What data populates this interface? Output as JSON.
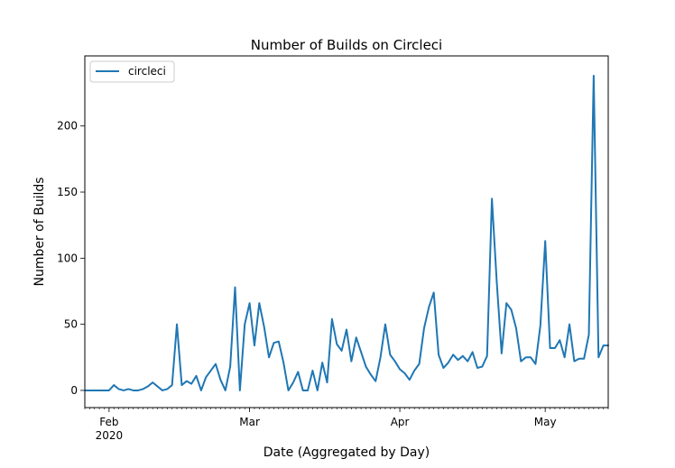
{
  "chart_data": {
    "type": "line",
    "title": "Number of Builds on Circleci",
    "xlabel": "Date (Aggregated by Day)",
    "ylabel": "Number of Builds",
    "x_start": "2020-01-27",
    "x_end": "2020-05-14",
    "x_ticks": [
      {
        "date": "2020-02-01",
        "label": "Feb",
        "sublabel": "2020"
      },
      {
        "date": "2020-03-01",
        "label": "Mar",
        "sublabel": ""
      },
      {
        "date": "2020-04-01",
        "label": "Apr",
        "sublabel": ""
      },
      {
        "date": "2020-05-01",
        "label": "May",
        "sublabel": ""
      }
    ],
    "ylim": [
      -13,
      253
    ],
    "y_ticks": [
      0,
      50,
      100,
      150,
      200
    ],
    "grid": false,
    "legend_position": "upper-left",
    "color": "#1f77b4",
    "series": [
      {
        "name": "circleci",
        "x": [
          "2020-01-27",
          "2020-01-28",
          "2020-01-29",
          "2020-01-30",
          "2020-01-31",
          "2020-02-01",
          "2020-02-02",
          "2020-02-03",
          "2020-02-04",
          "2020-02-05",
          "2020-02-06",
          "2020-02-07",
          "2020-02-08",
          "2020-02-09",
          "2020-02-10",
          "2020-02-11",
          "2020-02-12",
          "2020-02-13",
          "2020-02-14",
          "2020-02-15",
          "2020-02-16",
          "2020-02-17",
          "2020-02-18",
          "2020-02-19",
          "2020-02-20",
          "2020-02-21",
          "2020-02-22",
          "2020-02-23",
          "2020-02-24",
          "2020-02-25",
          "2020-02-26",
          "2020-02-27",
          "2020-02-28",
          "2020-02-29",
          "2020-03-01",
          "2020-03-02",
          "2020-03-03",
          "2020-03-04",
          "2020-03-05",
          "2020-03-06",
          "2020-03-07",
          "2020-03-08",
          "2020-03-09",
          "2020-03-10",
          "2020-03-11",
          "2020-03-12",
          "2020-03-13",
          "2020-03-14",
          "2020-03-15",
          "2020-03-16",
          "2020-03-17",
          "2020-03-18",
          "2020-03-19",
          "2020-03-20",
          "2020-03-21",
          "2020-03-22",
          "2020-03-23",
          "2020-03-24",
          "2020-03-25",
          "2020-03-26",
          "2020-03-27",
          "2020-03-28",
          "2020-03-29",
          "2020-03-30",
          "2020-03-31",
          "2020-04-01",
          "2020-04-02",
          "2020-04-03",
          "2020-04-04",
          "2020-04-05",
          "2020-04-06",
          "2020-04-07",
          "2020-04-08",
          "2020-04-09",
          "2020-04-10",
          "2020-04-11",
          "2020-04-12",
          "2020-04-13",
          "2020-04-14",
          "2020-04-15",
          "2020-04-16",
          "2020-04-17",
          "2020-04-18",
          "2020-04-19",
          "2020-04-20",
          "2020-04-21",
          "2020-04-22",
          "2020-04-23",
          "2020-04-24",
          "2020-04-25",
          "2020-04-26",
          "2020-04-27",
          "2020-04-28",
          "2020-04-29",
          "2020-04-30",
          "2020-05-01",
          "2020-05-02",
          "2020-05-03",
          "2020-05-04",
          "2020-05-05",
          "2020-05-06",
          "2020-05-07",
          "2020-05-08",
          "2020-05-09",
          "2020-05-10",
          "2020-05-11",
          "2020-05-12",
          "2020-05-13",
          "2020-05-14"
        ],
        "y": [
          0,
          0,
          0,
          0,
          0,
          0,
          4,
          1,
          0,
          1,
          0,
          0,
          1,
          3,
          6,
          3,
          0,
          1,
          4,
          50,
          4,
          7,
          5,
          11,
          0,
          10,
          15,
          20,
          8,
          0,
          18,
          78,
          0,
          50,
          66,
          34,
          66,
          48,
          25,
          36,
          37,
          21,
          0,
          6,
          14,
          0,
          0,
          15,
          0,
          21,
          6,
          54,
          35,
          30,
          46,
          22,
          40,
          29,
          18,
          12,
          7,
          25,
          50,
          27,
          22,
          16,
          13,
          8,
          15,
          20,
          47,
          63,
          74,
          27,
          17,
          21,
          27,
          23,
          26,
          22,
          29,
          17,
          18,
          26,
          145,
          82,
          28,
          66,
          61,
          47,
          22,
          25,
          25,
          20,
          49,
          113,
          32,
          32,
          38,
          25,
          50,
          22,
          24,
          24,
          42,
          238,
          25,
          34,
          34
        ]
      }
    ]
  }
}
